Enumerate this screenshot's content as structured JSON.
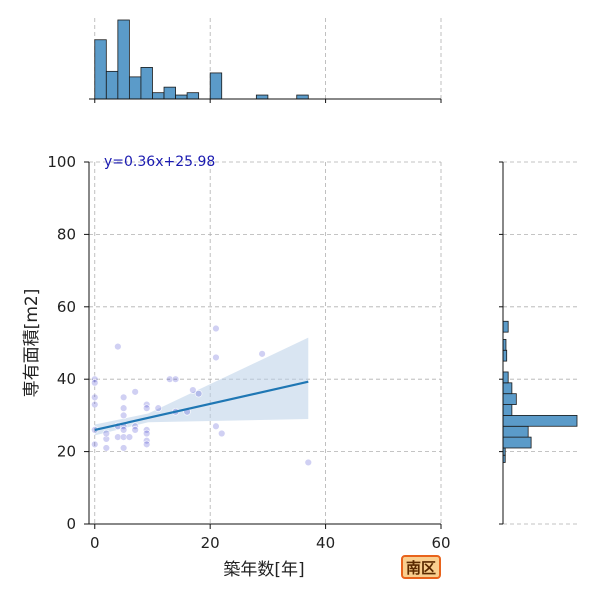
{
  "badge": {
    "label": "南区"
  },
  "chart_data": {
    "type": "scatter",
    "xlabel": "築年数[年]",
    "ylabel": "専有面積[m2]",
    "xlim": [
      -1,
      60
    ],
    "ylim": [
      0,
      100
    ],
    "xticks": [
      "0",
      "20",
      "40",
      "60"
    ],
    "yticks": [
      "0",
      "20",
      "40",
      "60",
      "80",
      "100"
    ],
    "grid": true,
    "annotation": "y=0.36x+25.98",
    "colors": {
      "points": "#2a2ac8",
      "regression": "#1f77b4",
      "band": "#b9d0e8",
      "hist": "#5b9bc9"
    },
    "regression": {
      "slope": 0.36,
      "intercept": 25.98,
      "x_range": [
        0,
        37
      ],
      "ci_upper_end": 51.5,
      "ci_lower_end": 29
    },
    "points": [
      {
        "x": 0,
        "y": 40
      },
      {
        "x": 0,
        "y": 39
      },
      {
        "x": 0,
        "y": 35
      },
      {
        "x": 0,
        "y": 33
      },
      {
        "x": 0,
        "y": 26
      },
      {
        "x": 0,
        "y": 22
      },
      {
        "x": 2,
        "y": 21
      },
      {
        "x": 2,
        "y": 23.5
      },
      {
        "x": 2,
        "y": 25
      },
      {
        "x": 4,
        "y": 49
      },
      {
        "x": 4,
        "y": 27
      },
      {
        "x": 4,
        "y": 24
      },
      {
        "x": 5,
        "y": 35
      },
      {
        "x": 5,
        "y": 32
      },
      {
        "x": 5,
        "y": 30
      },
      {
        "x": 5,
        "y": 27
      },
      {
        "x": 5,
        "y": 26
      },
      {
        "x": 5,
        "y": 24
      },
      {
        "x": 5,
        "y": 21
      },
      {
        "x": 6,
        "y": 24
      },
      {
        "x": 7,
        "y": 36.5
      },
      {
        "x": 7,
        "y": 27
      },
      {
        "x": 7,
        "y": 26
      },
      {
        "x": 9,
        "y": 33
      },
      {
        "x": 9,
        "y": 32
      },
      {
        "x": 9,
        "y": 26
      },
      {
        "x": 9,
        "y": 25
      },
      {
        "x": 9,
        "y": 23
      },
      {
        "x": 9,
        "y": 22
      },
      {
        "x": 11,
        "y": 32
      },
      {
        "x": 13,
        "y": 40
      },
      {
        "x": 14,
        "y": 40
      },
      {
        "x": 14,
        "y": 31
      },
      {
        "x": 16,
        "y": 31
      },
      {
        "x": 17,
        "y": 37
      },
      {
        "x": 18,
        "y": 36
      },
      {
        "x": 21,
        "y": 54
      },
      {
        "x": 21,
        "y": 46
      },
      {
        "x": 21,
        "y": 27
      },
      {
        "x": 22,
        "y": 25
      },
      {
        "x": 29,
        "y": 47
      },
      {
        "x": 37,
        "y": 17
      }
    ],
    "hist_x": {
      "bins": [
        [
          0,
          2,
          0.75
        ],
        [
          2,
          4,
          0.35
        ],
        [
          4,
          6,
          1.0
        ],
        [
          6,
          8,
          0.28
        ],
        [
          8,
          10,
          0.4
        ],
        [
          10,
          12,
          0.08
        ],
        [
          12,
          14,
          0.15
        ],
        [
          14,
          16,
          0.05
        ],
        [
          16,
          18,
          0.08
        ],
        [
          20,
          22,
          0.33
        ],
        [
          28,
          30,
          0.05
        ],
        [
          35,
          37,
          0.05
        ]
      ]
    },
    "hist_y": {
      "bins": [
        [
          17,
          19,
          0.03
        ],
        [
          19,
          21,
          0.03
        ],
        [
          21,
          24,
          0.38
        ],
        [
          24,
          27,
          0.34
        ],
        [
          27,
          30,
          1.0
        ],
        [
          30,
          33,
          0.12
        ],
        [
          33,
          36,
          0.18
        ],
        [
          36,
          39,
          0.12
        ],
        [
          39,
          42,
          0.07
        ],
        [
          45,
          48,
          0.05
        ],
        [
          48,
          51,
          0.04
        ],
        [
          53,
          56,
          0.07
        ]
      ]
    }
  }
}
